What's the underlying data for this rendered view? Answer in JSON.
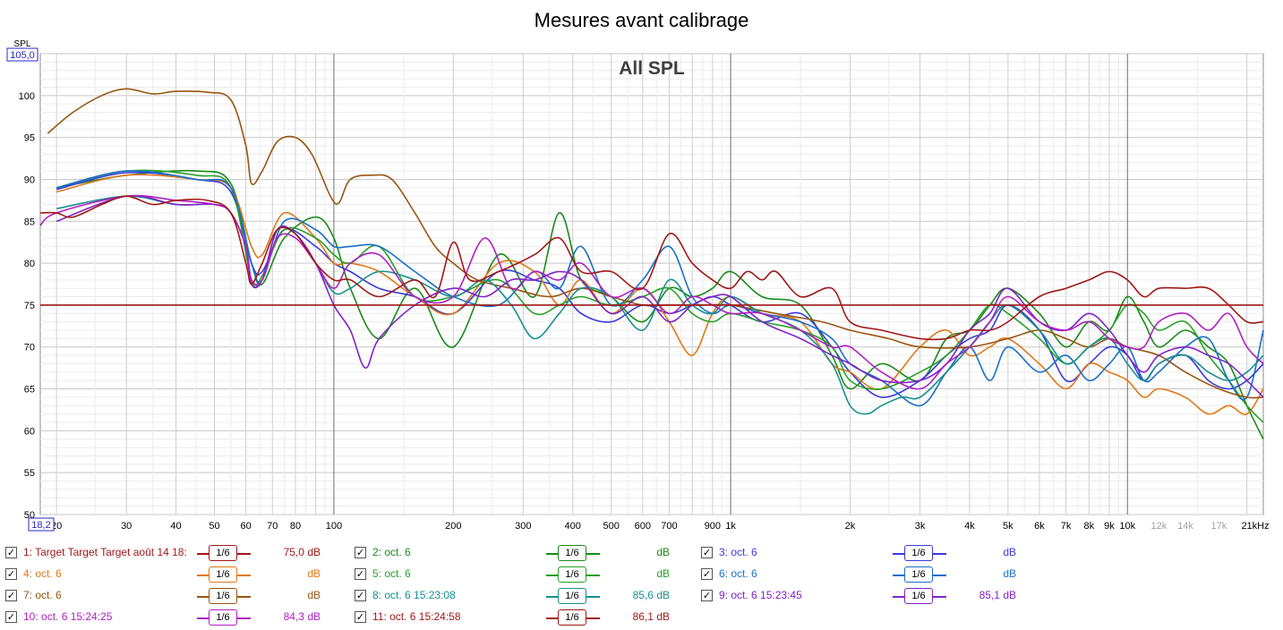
{
  "chart_data": {
    "type": "line",
    "title": "Mesures avant calibrage",
    "subtitle": "All SPL",
    "ylabel": "SPL",
    "xscale": "log",
    "xlim": [
      18.2,
      22000
    ],
    "ylim": [
      50,
      105
    ],
    "x_corner_label": "18,2",
    "y_top_label": "105,0",
    "y_ticks": [
      50,
      55,
      60,
      65,
      70,
      75,
      80,
      85,
      90,
      95,
      100
    ],
    "x_tick_labels": [
      {
        "x": 20,
        "label": "20"
      },
      {
        "x": 30,
        "label": "30"
      },
      {
        "x": 40,
        "label": "40"
      },
      {
        "x": 50,
        "label": "50"
      },
      {
        "x": 60,
        "label": "60"
      },
      {
        "x": 70,
        "label": "70"
      },
      {
        "x": 80,
        "label": "80"
      },
      {
        "x": 100,
        "label": "100"
      },
      {
        "x": 200,
        "label": "200"
      },
      {
        "x": 300,
        "label": "300"
      },
      {
        "x": 400,
        "label": "400"
      },
      {
        "x": 500,
        "label": "500"
      },
      {
        "x": 600,
        "label": "600"
      },
      {
        "x": 700,
        "label": "700"
      },
      {
        "x": 900,
        "label": "900"
      },
      {
        "x": 1000,
        "label": "1k"
      },
      {
        "x": 2000,
        "label": "2k"
      },
      {
        "x": 3000,
        "label": "3k"
      },
      {
        "x": 4000,
        "label": "4k"
      },
      {
        "x": 5000,
        "label": "5k"
      },
      {
        "x": 6000,
        "label": "6k"
      },
      {
        "x": 7000,
        "label": "7k"
      },
      {
        "x": 8000,
        "label": "8k"
      },
      {
        "x": 9000,
        "label": "9k"
      },
      {
        "x": 10000,
        "label": "10k"
      },
      {
        "x": 12000,
        "label": "12k",
        "muted": true
      },
      {
        "x": 14000,
        "label": "14k",
        "muted": true
      },
      {
        "x": 17000,
        "label": "17k",
        "muted": true
      },
      {
        "x": 21000,
        "label": "21kHz"
      }
    ],
    "grid": true,
    "series": [
      {
        "name": "1: Target Target Target août 14 18:",
        "color": "#a01818",
        "value": "75,0 dB",
        "smoothing": "1/6",
        "x": [
          18.2,
          22000
        ],
        "y": [
          75,
          75
        ]
      },
      {
        "name": "2: oct. 6",
        "color": "#1a8a1a",
        "value": "dB",
        "smoothing": "1/6",
        "x": [
          20,
          30,
          45,
          55,
          62,
          66,
          75,
          90,
          100,
          110,
          130,
          160,
          200,
          260,
          320,
          370,
          420,
          500,
          600,
          700,
          800,
          900,
          1000,
          1200,
          1500,
          1800,
          2000,
          2400,
          3000,
          3500,
          4000,
          4500,
          5000,
          6000,
          7000,
          8000,
          9000,
          10000,
          11000,
          12000,
          14000,
          16000,
          18000,
          20000,
          22000
        ],
        "y": [
          89,
          90.5,
          91,
          89.5,
          80,
          77.5,
          83,
          85.5,
          83,
          77,
          71,
          77,
          70,
          81,
          76,
          86,
          78,
          76,
          73,
          77,
          76,
          77,
          79,
          76,
          75,
          69,
          65,
          68,
          66,
          71,
          72,
          75,
          77,
          74,
          70,
          73,
          72,
          76,
          73,
          70,
          72,
          70,
          68,
          63,
          59
        ]
      },
      {
        "name": "3: oct. 6",
        "color": "#3a3adc",
        "value": "dB",
        "smoothing": "1/6",
        "x": [
          20,
          30,
          45,
          55,
          62,
          66,
          75,
          90,
          100,
          110,
          130,
          160,
          200,
          260,
          320,
          370,
          420,
          500,
          600,
          700,
          800,
          900,
          1000,
          1200,
          1500,
          1800,
          2000,
          2400,
          3000,
          3500,
          4000,
          4500,
          5000,
          6000,
          7000,
          8000,
          9000,
          10000,
          11000,
          12000,
          14000,
          16000,
          18000,
          20000,
          22000
        ],
        "y": [
          88.8,
          90.8,
          90,
          88.5,
          80,
          79,
          84,
          82,
          80,
          79,
          77,
          76,
          74,
          79,
          78,
          77,
          74,
          73,
          75,
          74,
          75,
          76,
          75,
          73,
          74,
          70,
          67,
          64,
          66,
          69,
          71,
          72,
          75,
          72,
          66,
          68,
          70,
          69,
          66,
          68,
          69,
          66,
          65,
          66,
          68
        ]
      },
      {
        "name": "4: oct. 6",
        "color": "#e07818",
        "value": "dB",
        "smoothing": "1/6",
        "x": [
          20,
          30,
          45,
          55,
          62,
          66,
          75,
          90,
          100,
          110,
          130,
          160,
          200,
          260,
          320,
          370,
          420,
          500,
          600,
          700,
          800,
          900,
          1000,
          1200,
          1500,
          1800,
          2000,
          2400,
          3000,
          3500,
          4000,
          4500,
          5000,
          6000,
          7000,
          8000,
          9000,
          10000,
          11000,
          12000,
          14000,
          16000,
          18000,
          20000,
          22000
        ],
        "y": [
          88.5,
          90.5,
          90,
          89,
          82,
          81,
          86,
          83,
          80,
          80,
          79,
          76,
          74,
          80,
          79,
          75,
          78,
          74,
          77,
          73,
          69,
          74,
          76,
          74,
          73,
          68,
          67,
          65,
          70,
          72,
          69,
          70,
          71,
          68,
          65,
          68,
          67,
          66,
          64,
          65,
          64,
          62,
          63,
          62,
          65
        ]
      },
      {
        "name": "5: oct. 6",
        "color": "#28a028",
        "value": "dB",
        "smoothing": "1/6",
        "x": [
          20,
          30,
          45,
          55,
          62,
          66,
          75,
          90,
          100,
          110,
          130,
          160,
          200,
          260,
          320,
          370,
          420,
          500,
          600,
          700,
          800,
          900,
          1000,
          1200,
          1500,
          1800,
          2000,
          2400,
          3000,
          3500,
          4000,
          4500,
          5000,
          6000,
          7000,
          8000,
          9000,
          10000,
          11000,
          12000,
          14000,
          16000,
          18000,
          20000,
          22000
        ],
        "y": [
          89,
          91,
          90.5,
          89,
          78,
          78.5,
          84,
          83,
          81,
          80,
          82,
          76,
          76,
          78,
          74,
          75,
          76,
          75,
          76,
          77,
          74,
          73,
          74,
          73,
          72,
          70,
          66,
          65,
          67,
          69,
          72,
          75,
          74,
          71,
          68,
          70,
          72,
          75,
          74,
          72,
          73,
          69,
          66,
          63,
          61
        ]
      },
      {
        "name": "6: oct. 6",
        "color": "#1870c8",
        "value": "dB",
        "smoothing": "1/6",
        "x": [
          20,
          30,
          45,
          55,
          62,
          66,
          75,
          90,
          100,
          110,
          130,
          160,
          200,
          260,
          320,
          370,
          420,
          500,
          600,
          700,
          800,
          900,
          1000,
          1200,
          1500,
          1800,
          2000,
          2400,
          3000,
          3500,
          4000,
          4500,
          5000,
          6000,
          7000,
          8000,
          9000,
          10000,
          11000,
          12000,
          14000,
          16000,
          18000,
          20000,
          22000
        ],
        "y": [
          89,
          91,
          90,
          89,
          80,
          78,
          85,
          84,
          82,
          82,
          82,
          79,
          76,
          75,
          79,
          77,
          82,
          75,
          78,
          82,
          76,
          74,
          75,
          74,
          73,
          71,
          68,
          66,
          63,
          67,
          70,
          66,
          70,
          67,
          69,
          66,
          68,
          70,
          66,
          67,
          70,
          71,
          66,
          64,
          72
        ]
      },
      {
        "name": "7: oct. 6",
        "color": "#995511",
        "value": "dB",
        "smoothing": "1/6",
        "x": [
          19,
          22,
          26,
          30,
          35,
          40,
          48,
          55,
          60,
          62,
          66,
          72,
          80,
          88,
          98,
          103,
          110,
          125,
          140,
          160,
          180,
          200,
          230,
          280,
          350,
          420,
          500,
          600,
          700,
          850,
          1000,
          1300,
          1700,
          2000,
          2500,
          3000,
          4000,
          5000,
          6000,
          7000,
          8000,
          9000,
          10000,
          12000,
          14000,
          17000,
          20000,
          22000
        ],
        "y": [
          95.5,
          98,
          100,
          100.8,
          100.2,
          100.5,
          100.4,
          99.5,
          94,
          89.5,
          91,
          94.5,
          95,
          93,
          88,
          87.2,
          90,
          90.5,
          90,
          86,
          82,
          80,
          78,
          77,
          76,
          77,
          76,
          75,
          75,
          75,
          75,
          74,
          73,
          72,
          71,
          70,
          70,
          71,
          72,
          71,
          70,
          71,
          70,
          69,
          67,
          65,
          64,
          64
        ]
      },
      {
        "name": "8: oct. 6 15:23:08",
        "color": "#189090",
        "value": "85,6 dB",
        "smoothing": "1/6",
        "x": [
          20,
          30,
          40,
          50,
          55,
          60,
          62,
          66,
          72,
          80,
          90,
          100,
          110,
          130,
          160,
          200,
          240,
          280,
          320,
          370,
          420,
          500,
          600,
          700,
          800,
          900,
          1000,
          1200,
          1500,
          1800,
          2000,
          2200,
          2400,
          2700,
          3000,
          3500,
          4000,
          4500,
          5000,
          6000,
          7000,
          8000,
          9000,
          10000,
          11000,
          12000,
          14000,
          16000,
          18000,
          20000,
          22000
        ],
        "y": [
          86.5,
          88,
          87,
          87,
          86,
          82,
          78,
          78,
          84,
          83.5,
          80,
          76.5,
          77,
          79,
          78,
          76,
          78,
          75,
          71,
          74,
          77,
          76,
          72,
          78,
          75,
          74,
          76,
          74,
          72,
          68,
          63,
          62,
          63,
          64,
          64,
          67,
          70,
          73,
          75,
          72,
          68,
          70,
          71,
          68,
          66,
          68,
          69,
          67,
          66,
          67,
          69
        ]
      },
      {
        "name": "9: oct. 6 15:23:45",
        "color": "#8022c8",
        "value": "85,1 dB",
        "smoothing": "1/6",
        "x": [
          20,
          30,
          40,
          50,
          55,
          60,
          62,
          66,
          72,
          80,
          90,
          100,
          110,
          120,
          130,
          160,
          200,
          240,
          280,
          320,
          370,
          420,
          500,
          600,
          700,
          800,
          900,
          1000,
          1200,
          1500,
          1800,
          2000,
          2400,
          3000,
          3500,
          4000,
          4500,
          5000,
          6000,
          7000,
          8000,
          9000,
          10000,
          11000,
          12000,
          14000,
          16000,
          18000,
          20000,
          22000
        ],
        "y": [
          85,
          88,
          87,
          87,
          86,
          82,
          77.5,
          78,
          84,
          83.5,
          80,
          75,
          72,
          67.5,
          71,
          75,
          77,
          76,
          78,
          78,
          79,
          78,
          74,
          76,
          73,
          75,
          76,
          76,
          73,
          71,
          69,
          68,
          66,
          66,
          68,
          72,
          74,
          77,
          73,
          72,
          74,
          72,
          69,
          67,
          69,
          70,
          69,
          68,
          66,
          64
        ]
      },
      {
        "name": "10: oct. 6 15:24:25",
        "color": "#b020c0",
        "value": "84,3 dB",
        "smoothing": "1/6",
        "x": [
          18.2,
          20,
          30,
          40,
          50,
          55,
          60,
          62,
          66,
          72,
          80,
          90,
          100,
          110,
          130,
          160,
          200,
          240,
          280,
          320,
          370,
          420,
          500,
          600,
          700,
          800,
          900,
          1000,
          1200,
          1500,
          1800,
          2000,
          2400,
          3000,
          3500,
          4000,
          4500,
          5000,
          6000,
          7000,
          8000,
          9000,
          10000,
          11000,
          12000,
          14000,
          16000,
          18000,
          20000,
          22000
        ],
        "y": [
          84.5,
          86,
          88,
          87.5,
          87,
          86,
          82,
          78,
          78,
          83,
          83,
          80,
          77,
          80,
          81,
          76,
          76,
          83,
          77,
          79,
          78,
          80,
          76,
          77,
          74,
          76,
          75,
          74,
          74,
          72,
          70,
          70,
          67,
          65,
          68,
          70,
          73,
          76,
          73,
          72,
          73,
          71,
          70,
          70,
          73,
          74,
          72,
          74,
          70,
          68
        ]
      },
      {
        "name": "11: oct. 6 15:24:58",
        "color": "#a01818",
        "value": "86,1 dB",
        "smoothing": "1/6",
        "x": [
          18.2,
          20,
          22,
          26,
          30,
          35,
          40,
          48,
          55,
          60,
          62,
          66,
          72,
          80,
          90,
          100,
          110,
          130,
          160,
          180,
          200,
          220,
          260,
          320,
          370,
          420,
          500,
          600,
          700,
          800,
          900,
          1000,
          1100,
          1200,
          1300,
          1500,
          1800,
          2000,
          2400,
          3000,
          3500,
          4000,
          4500,
          5000,
          6000,
          7000,
          8000,
          9000,
          10000,
          11000,
          12000,
          14000,
          16000,
          18000,
          20000,
          22000
        ],
        "y": [
          86,
          86,
          85.5,
          87,
          88,
          87,
          87.5,
          87.5,
          86,
          80,
          77.5,
          80,
          84,
          83.5,
          80,
          78,
          78,
          76,
          78,
          76,
          82.5,
          78,
          79,
          81,
          83,
          79,
          79,
          77,
          83.5,
          80,
          78,
          77,
          79,
          78,
          79,
          76,
          77,
          73,
          72,
          71,
          71,
          72,
          72,
          73,
          76,
          77,
          78,
          79,
          78,
          76,
          77,
          77,
          77,
          75,
          73,
          73
        ]
      }
    ]
  },
  "legend_columns": [
    [
      0,
      3,
      6,
      9
    ],
    [
      1,
      4,
      7,
      10
    ],
    [
      2,
      5,
      8
    ]
  ],
  "checkmark": "✓"
}
